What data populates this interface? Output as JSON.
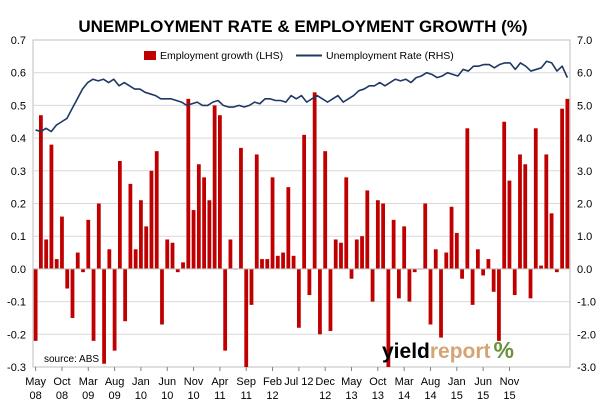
{
  "chart_data": {
    "type": "bar+line",
    "title": "UNEMPLOYMENT RATE & EMPLOYMENT GROWTH (%)",
    "y_left": {
      "min": -0.3,
      "max": 0.7,
      "step": 0.1,
      "tick_labels": [
        "-0.3",
        "-0.2",
        "-0.1",
        "0.0",
        "0.1",
        "0.2",
        "0.3",
        "0.4",
        "0.5",
        "0.6",
        "0.7"
      ]
    },
    "y_right": {
      "min": -3.0,
      "max": 7.0,
      "step": 1.0,
      "tick_labels": [
        "-3.0",
        "-2.0",
        "-1.0",
        "0.0",
        "1.0",
        "2.0",
        "3.0",
        "4.0",
        "5.0",
        "6.0",
        "7.0"
      ]
    },
    "x_tick_labels": [
      {
        "month": "May",
        "year": "08"
      },
      {
        "month": "Oct",
        "year": "08"
      },
      {
        "month": "Mar",
        "year": "09"
      },
      {
        "month": "Aug",
        "year": "09"
      },
      {
        "month": "Jan",
        "year": "10"
      },
      {
        "month": "Jun",
        "year": "10"
      },
      {
        "month": "Nov",
        "year": "10"
      },
      {
        "month": "Apr",
        "year": "11"
      },
      {
        "month": "Sep",
        "year": "11"
      },
      {
        "month": "Feb",
        "year": "12"
      },
      {
        "month": "Jul 12",
        "year": ""
      },
      {
        "month": "Dec",
        "year": "12"
      },
      {
        "month": "May",
        "year": "13"
      },
      {
        "month": "Oct",
        "year": "13"
      },
      {
        "month": "Mar",
        "year": "14"
      },
      {
        "month": "Aug",
        "year": "14"
      },
      {
        "month": "Jan",
        "year": "15"
      },
      {
        "month": "Jun",
        "year": "15"
      },
      {
        "month": "Nov",
        "year": "15"
      }
    ],
    "grid": true,
    "legend": {
      "placement": "top-center"
    },
    "series": [
      {
        "name": "Employment growth (LHS)",
        "type": "bar",
        "axis": "left",
        "color": "#c00000",
        "values": [
          -0.22,
          0.47,
          0.09,
          0.38,
          0.03,
          0.16,
          -0.06,
          -0.15,
          0.05,
          -0.01,
          0.15,
          -0.22,
          0.2,
          -0.29,
          0.06,
          -0.25,
          0.33,
          -0.16,
          0.26,
          0.06,
          0.21,
          0.13,
          0.3,
          0.36,
          -0.17,
          0.09,
          0.08,
          -0.01,
          0.02,
          0.52,
          0.18,
          0.32,
          0.28,
          0.21,
          0.5,
          0.47,
          -0.25,
          0.09,
          0.0,
          0.37,
          -0.3,
          -0.11,
          0.35,
          0.03,
          0.03,
          0.28,
          0.04,
          0.05,
          0.25,
          0.04,
          -0.18,
          0.41,
          -0.08,
          0.54,
          -0.2,
          0.36,
          -0.19,
          0.09,
          0.08,
          0.28,
          -0.03,
          0.09,
          0.1,
          0.24,
          -0.1,
          0.21,
          0.2,
          -0.3,
          0.15,
          -0.09,
          0.13,
          -0.1,
          -0.01,
          0.0,
          0.2,
          -0.17,
          0.06,
          -0.21,
          0.05,
          0.19,
          0.11,
          -0.03,
          0.43,
          -0.11,
          0.06,
          -0.02,
          0.03,
          -0.07,
          -0.22,
          0.45,
          0.27,
          -0.08,
          0.35,
          0.32,
          -0.09,
          0.43,
          0.01,
          0.35,
          0.17,
          -0.01,
          0.49,
          0.52
        ]
      },
      {
        "name": "Unemployment Rate (RHS)",
        "type": "line",
        "axis": "right",
        "color": "#1f3864",
        "values": [
          4.25,
          4.2,
          4.3,
          4.2,
          4.4,
          4.5,
          4.6,
          4.9,
          5.2,
          5.5,
          5.7,
          5.8,
          5.75,
          5.8,
          5.7,
          5.8,
          5.6,
          5.7,
          5.6,
          5.5,
          5.5,
          5.4,
          5.35,
          5.3,
          5.2,
          5.2,
          5.2,
          5.15,
          5.1,
          5.0,
          5.05,
          5.1,
          5.0,
          5.0,
          5.1,
          5.15,
          5.0,
          4.95,
          4.95,
          5.0,
          4.95,
          5.0,
          5.1,
          5.05,
          5.2,
          5.2,
          5.15,
          5.15,
          5.1,
          5.3,
          5.2,
          5.3,
          5.1,
          5.2,
          5.3,
          5.2,
          5.1,
          5.2,
          5.3,
          5.1,
          5.2,
          5.3,
          5.45,
          5.5,
          5.6,
          5.6,
          5.7,
          5.6,
          5.7,
          5.8,
          5.75,
          5.8,
          5.7,
          5.85,
          5.9,
          6.0,
          5.95,
          5.85,
          5.9,
          6.0,
          5.95,
          5.9,
          6.1,
          6.05,
          6.2,
          6.2,
          6.25,
          6.25,
          6.15,
          6.25,
          6.3,
          6.3,
          6.1,
          6.3,
          6.2,
          6.05,
          6.1,
          6.15,
          6.35,
          6.3,
          6.05,
          6.2,
          5.85
        ]
      }
    ],
    "annotations": [
      "source: ABS"
    ]
  },
  "logo": {
    "part1": "yield",
    "part2": "report",
    "part3": "%"
  }
}
